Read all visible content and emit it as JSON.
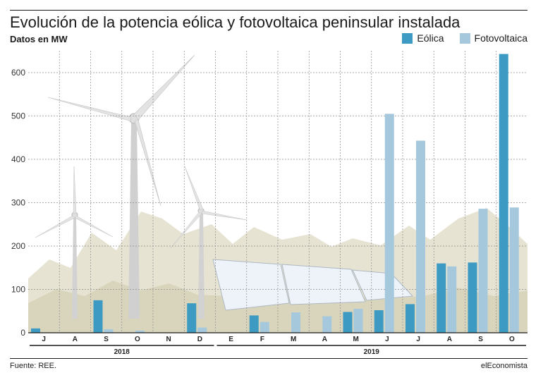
{
  "header": {
    "title": "Evolución de la potencia eólica y fotovoltaica peninsular instalada",
    "subtitle": "Datos en MW"
  },
  "legend": [
    {
      "label": "Eólica",
      "color": "#3d9bc3"
    },
    {
      "label": "Fotovoltaica",
      "color": "#a5c8dd"
    }
  ],
  "footer": {
    "source": "Fuente: REE.",
    "brand": "elEconomista"
  },
  "chart_data": {
    "type": "bar",
    "categories": [
      "J",
      "A",
      "S",
      "O",
      "N",
      "D",
      "E",
      "F",
      "M",
      "A",
      "M",
      "J",
      "J",
      "A",
      "S",
      "O"
    ],
    "years": [
      {
        "label": "2018",
        "start": 0,
        "end": 5
      },
      {
        "label": "2019",
        "start": 6,
        "end": 15
      }
    ],
    "series": [
      {
        "name": "Eólica",
        "color": "#3d9bc3",
        "values": [
          10,
          0,
          75,
          0,
          0,
          68,
          0,
          40,
          0,
          0,
          48,
          52,
          66,
          160,
          162,
          643
        ]
      },
      {
        "name": "Fotovoltaica",
        "color": "#a5c8dd",
        "values": [
          0,
          0,
          8,
          5,
          0,
          12,
          0,
          25,
          47,
          38,
          55,
          505,
          443,
          153,
          286,
          289
        ]
      }
    ],
    "ylim": [
      0,
      650
    ],
    "yticks": [
      0,
      100,
      200,
      300,
      400,
      500,
      600
    ],
    "grid": true,
    "legend_position": "top-right"
  }
}
